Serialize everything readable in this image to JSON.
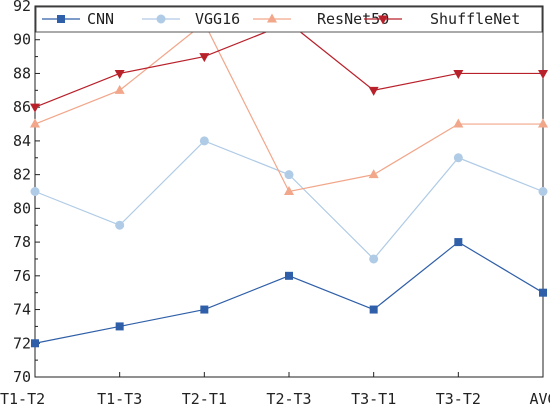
{
  "chart_data": {
    "type": "line",
    "categories": [
      "T1-T2",
      "T1-T3",
      "T2-T1",
      "T2-T3",
      "T3-T1",
      "T3-T2",
      "AVG"
    ],
    "ylim": [
      70,
      92
    ],
    "yticks": [
      70,
      72,
      74,
      76,
      78,
      80,
      82,
      84,
      86,
      88,
      90,
      92
    ],
    "grid": false,
    "legend_position": "top",
    "series": [
      {
        "name": "CNN",
        "marker": "square",
        "color": "#2f5fa8",
        "values": [
          72,
          73,
          74,
          76,
          74,
          78,
          75
        ]
      },
      {
        "name": "VGG16",
        "marker": "circle",
        "color": "#b0cbe6",
        "values": [
          81,
          79,
          84,
          82,
          77,
          83,
          81
        ]
      },
      {
        "name": "ResNet50",
        "marker": "triangle-up",
        "color": "#f2a68a",
        "values": [
          85,
          87,
          91,
          81,
          82,
          85,
          85
        ]
      },
      {
        "name": "ShuffleNet",
        "marker": "triangle-down",
        "color": "#b8202a",
        "values": [
          86,
          88,
          89,
          91,
          87,
          88,
          88
        ]
      }
    ]
  }
}
